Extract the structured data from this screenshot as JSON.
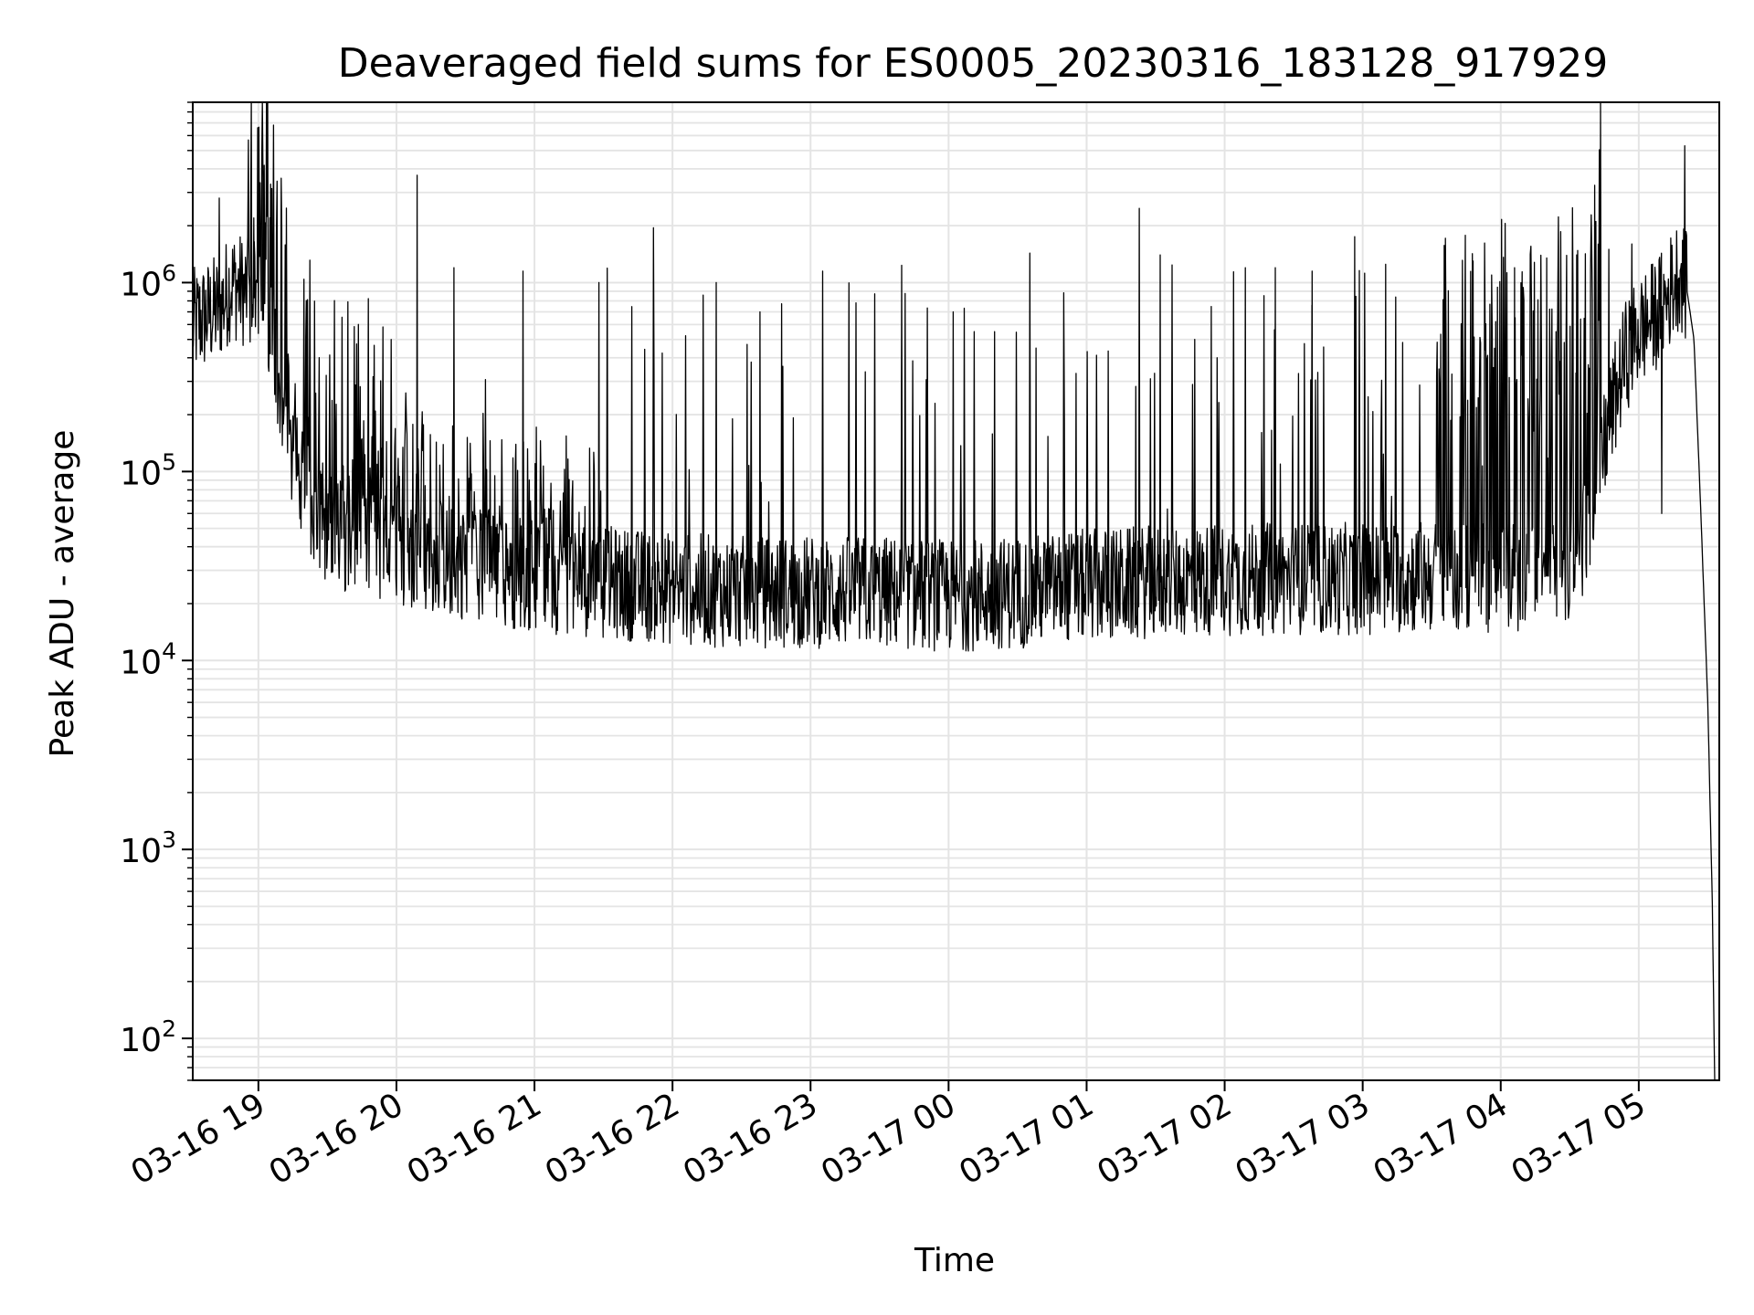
{
  "chart_data": {
    "type": "line",
    "title": "Deaveraged field sums for ES0005_20230316_183128_917929",
    "xlabel": "Time",
    "ylabel": "Peak ADU - average",
    "yscale": "log",
    "grid": true,
    "line_color": "#000000",
    "xlim": [
      "2023-03-16T18:31:28",
      "2023-03-17T05:35:00"
    ],
    "ylim": [
      60,
      9000000
    ],
    "x_ticks": [
      {
        "label": "03-16 19",
        "value": "2023-03-16T19:00:00"
      },
      {
        "label": "03-16 20",
        "value": "2023-03-16T20:00:00"
      },
      {
        "label": "03-16 21",
        "value": "2023-03-16T21:00:00"
      },
      {
        "label": "03-16 22",
        "value": "2023-03-16T22:00:00"
      },
      {
        "label": "03-16 23",
        "value": "2023-03-16T23:00:00"
      },
      {
        "label": "03-17 00",
        "value": "2023-03-17T00:00:00"
      },
      {
        "label": "03-17 01",
        "value": "2023-03-17T01:00:00"
      },
      {
        "label": "03-17 02",
        "value": "2023-03-17T02:00:00"
      },
      {
        "label": "03-17 03",
        "value": "2023-03-17T03:00:00"
      },
      {
        "label": "03-17 04",
        "value": "2023-03-17T04:00:00"
      },
      {
        "label": "03-17 05",
        "value": "2023-03-17T05:00:00"
      }
    ],
    "y_ticks": [
      {
        "base": "10",
        "exp": "2",
        "value": 100
      },
      {
        "base": "10",
        "exp": "3",
        "value": 1000
      },
      {
        "base": "10",
        "exp": "4",
        "value": 10000
      },
      {
        "base": "10",
        "exp": "5",
        "value": 100000
      },
      {
        "base": "10",
        "exp": "6",
        "value": 1000000
      }
    ],
    "series": [
      {
        "baseline": {
          "x": [
            "2023-03-16T18:31:28",
            "2023-03-16T18:36:00",
            "2023-03-16T18:42:00",
            "2023-03-16T18:45:00",
            "2023-03-16T18:48:00",
            "2023-03-16T18:54:00",
            "2023-03-16T19:00:00",
            "2023-03-16T19:04:00",
            "2023-03-16T19:08:00",
            "2023-03-16T19:12:00",
            "2023-03-16T19:18:00",
            "2023-03-16T19:24:00",
            "2023-03-16T19:30:00",
            "2023-03-16T19:40:00",
            "2023-03-16T19:50:00",
            "2023-03-16T20:00:00",
            "2023-03-16T20:20:00",
            "2023-03-16T20:40:00",
            "2023-03-16T21:00:00",
            "2023-03-16T21:30:00",
            "2023-03-16T22:00:00",
            "2023-03-16T22:30:00",
            "2023-03-16T23:00:00",
            "2023-03-16T23:30:00",
            "2023-03-17T00:00:00",
            "2023-03-17T00:30:00",
            "2023-03-17T01:00:00",
            "2023-03-17T01:30:00",
            "2023-03-17T02:00:00",
            "2023-03-17T02:30:00",
            "2023-03-17T03:00:00",
            "2023-03-17T03:30:00",
            "2023-03-17T04:00:00",
            "2023-03-17T04:20:00",
            "2023-03-17T04:30:00",
            "2023-03-17T04:36:00",
            "2023-03-17T04:42:00",
            "2023-03-17T04:48:00",
            "2023-03-17T04:54:00",
            "2023-03-17T05:00:00",
            "2023-03-17T05:06:00",
            "2023-03-17T05:12:00",
            "2023-03-17T05:15:00",
            "2023-03-17T05:18:00",
            "2023-03-17T05:21:00",
            "2023-03-17T05:24:00",
            "2023-03-17T05:27:00",
            "2023-03-17T05:30:00",
            "2023-03-17T05:32:00",
            "2023-03-17T05:33:00"
          ],
          "y": [
            600000,
            650000,
            720000,
            800000,
            1000000,
            900000,
            800000,
            500000,
            250000,
            150000,
            90000,
            60000,
            50000,
            45000,
            40000,
            38000,
            34000,
            31000,
            28000,
            26000,
            24000,
            23000,
            23000,
            23000,
            22000,
            23000,
            25000,
            26000,
            27000,
            27000,
            27000,
            28000,
            28000,
            28000,
            30000,
            45000,
            90000,
            200000,
            400000,
            550000,
            650000,
            800000,
            1000000,
            1150000,
            900000,
            500000,
            60000,
            6000,
            500,
            60
          ]
        },
        "noise_amplitude": 0.3,
        "spikes": [
          {
            "x": "2023-03-16T18:43:00",
            "y": 2800000
          },
          {
            "x": "2023-03-16T18:58:00",
            "y": 2200000
          },
          {
            "x": "2023-03-16T19:02:00",
            "y": 2000000
          },
          {
            "x": "2023-03-16T19:05:00",
            "y": 2200000
          },
          {
            "x": "2023-03-16T20:09:00",
            "y": 3700000
          },
          {
            "x": "2023-03-16T20:25:00",
            "y": 1200000
          },
          {
            "x": "2023-03-16T20:55:00",
            "y": 1150000
          },
          {
            "x": "2023-03-16T21:28:00",
            "y": 1000000
          },
          {
            "x": "2023-03-16T22:19:00",
            "y": 1000000
          },
          {
            "x": "2023-03-16T22:38:00",
            "y": 700000
          },
          {
            "x": "2023-03-17T00:02:00",
            "y": 700000
          },
          {
            "x": "2023-03-17T00:20:00",
            "y": 550000
          },
          {
            "x": "2023-03-17T00:38:00",
            "y": 450000
          },
          {
            "x": "2023-03-17T01:32:00",
            "y": 1400000
          },
          {
            "x": "2023-03-17T01:47:00",
            "y": 500000
          },
          {
            "x": "2023-03-17T02:09:00",
            "y": 1200000
          },
          {
            "x": "2023-03-17T02:22:00",
            "y": 1200000
          },
          {
            "x": "2023-03-17T02:38:00",
            "y": 1150000
          },
          {
            "x": "2023-03-17T03:10:00",
            "y": 1250000
          },
          {
            "x": "2023-03-17T03:48:00",
            "y": 1300000
          },
          {
            "x": "2023-03-17T04:06:00",
            "y": 1200000
          },
          {
            "x": "2023-03-17T04:20:00",
            "y": 1350000
          },
          {
            "x": "2023-03-17T04:33:00",
            "y": 1400000
          },
          {
            "x": "2023-03-17T04:47:00",
            "y": 1500000
          },
          {
            "x": "2023-03-17T04:57:00",
            "y": 1600000
          },
          {
            "x": "2023-03-17T05:10:00",
            "y": 60000
          },
          {
            "x": "2023-03-17T05:20:00",
            "y": 5300000
          }
        ]
      }
    ]
  }
}
